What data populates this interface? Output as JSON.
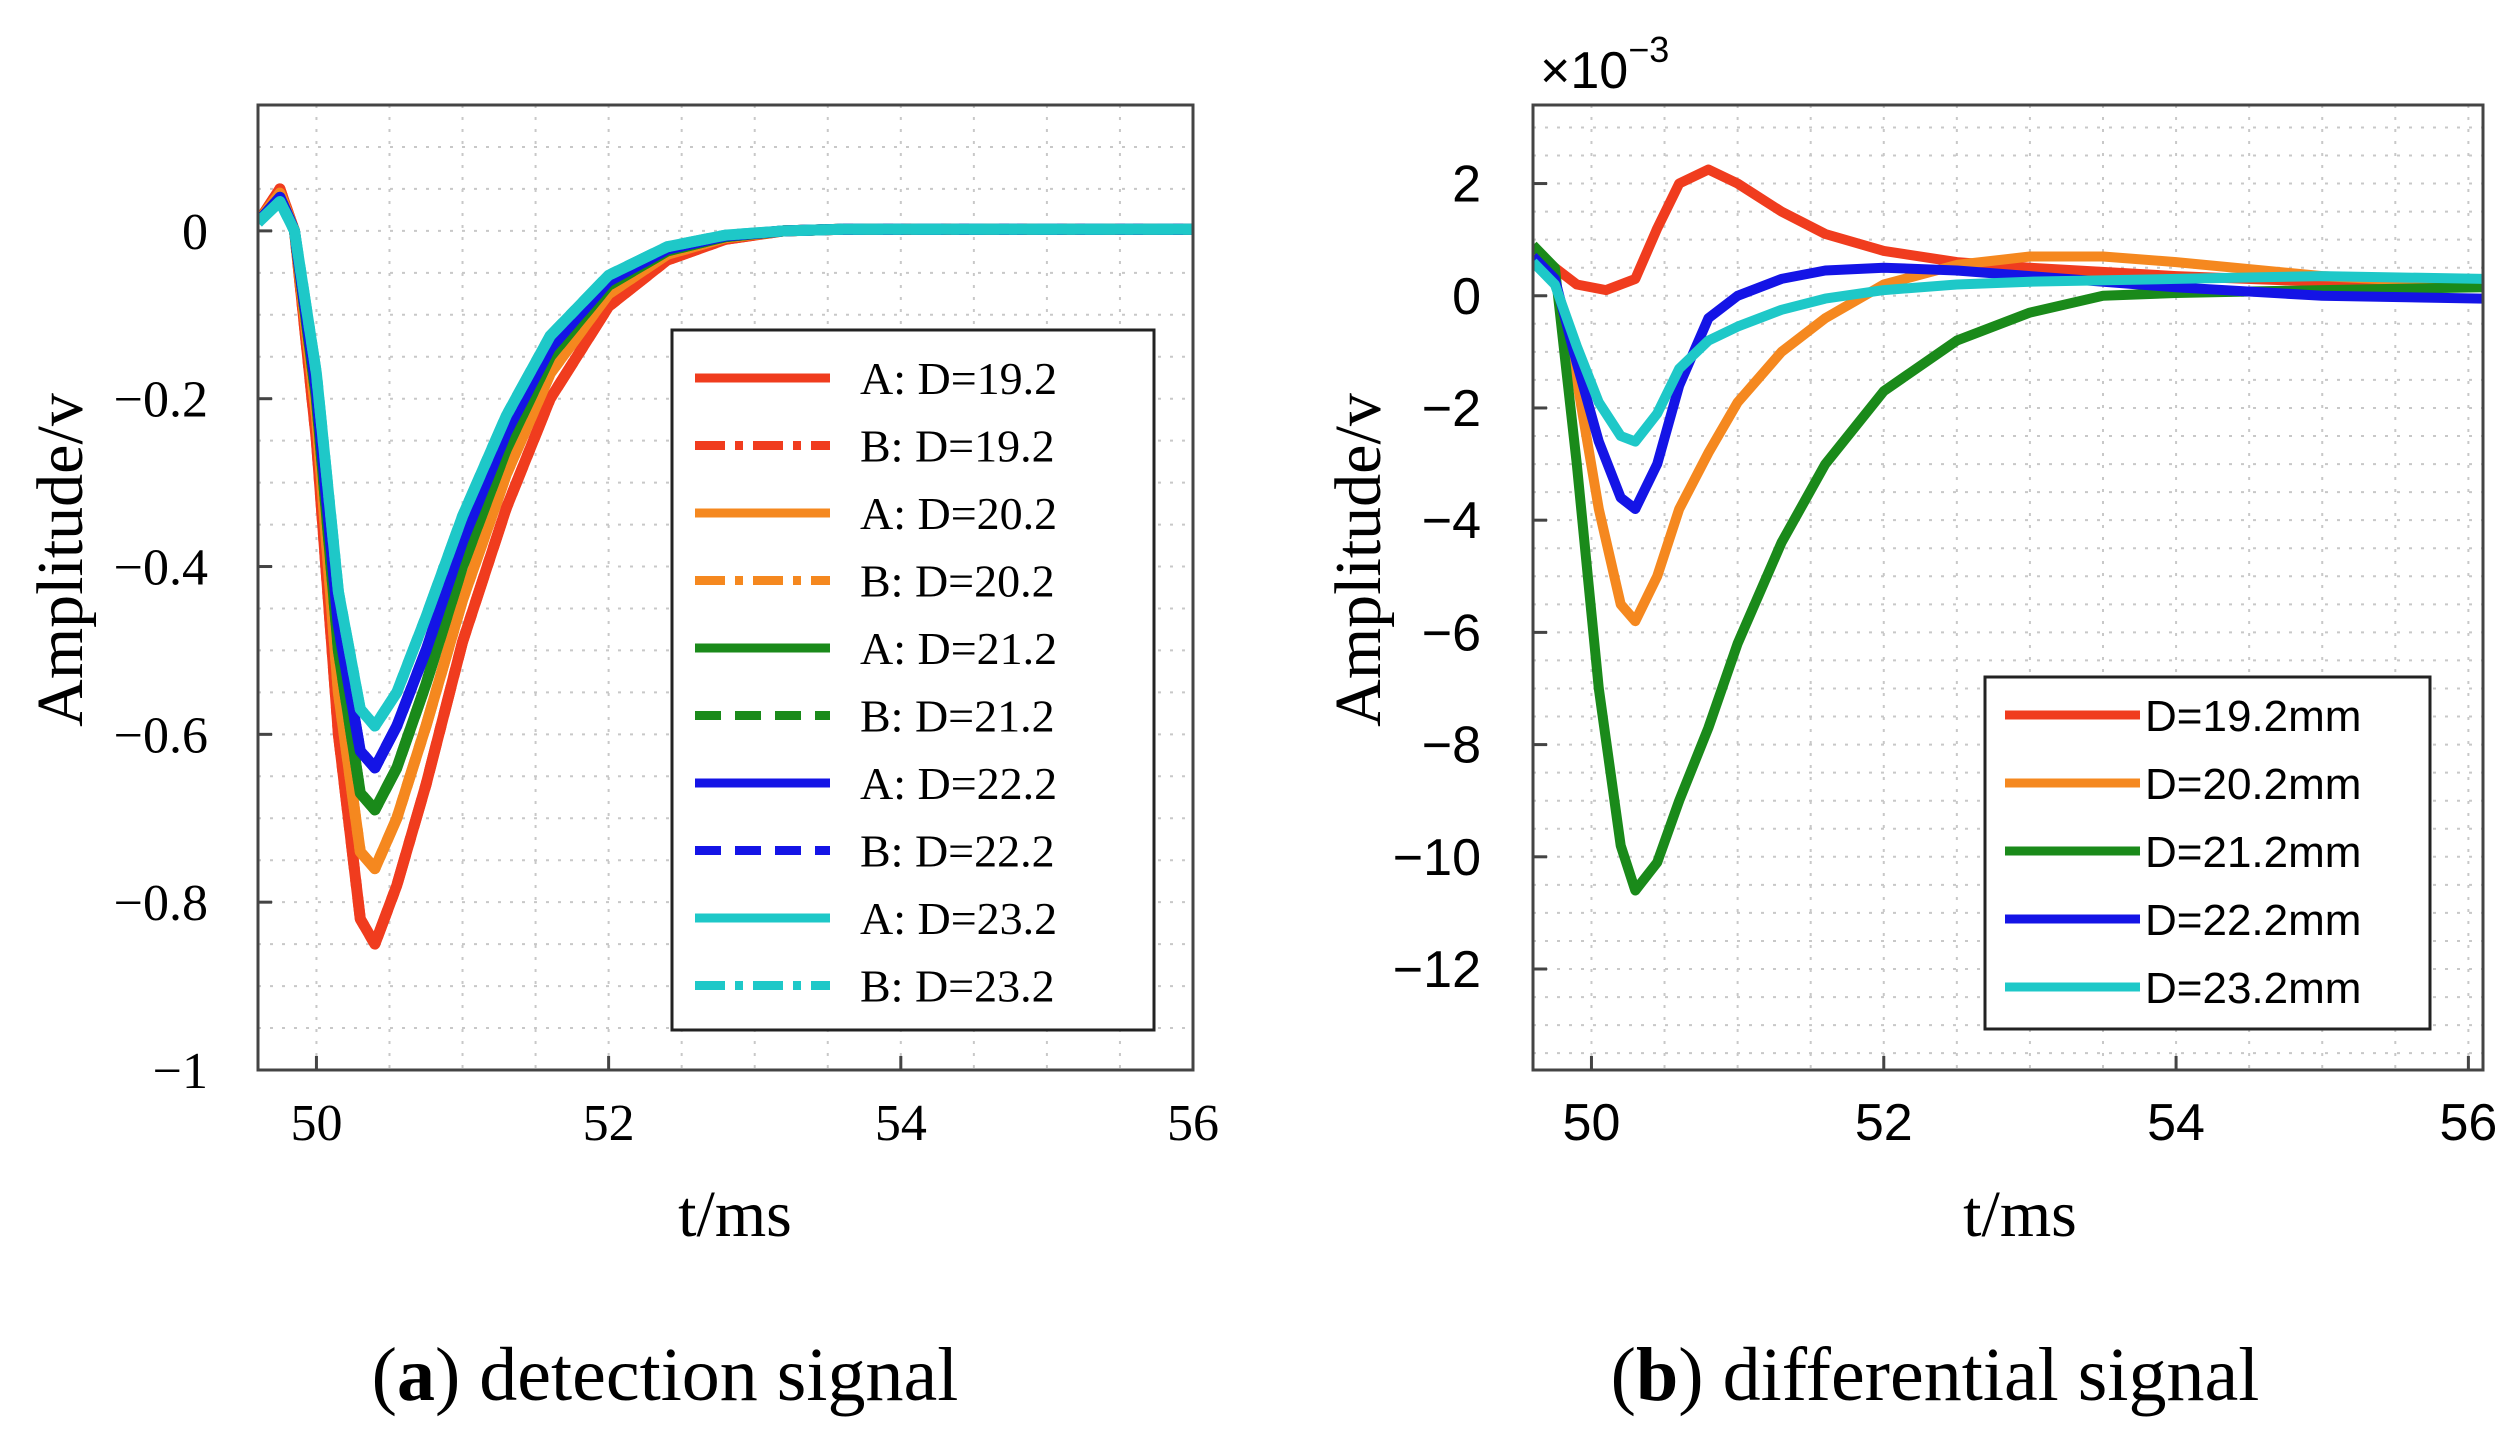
{
  "chart_data": [
    {
      "type": "line",
      "panel": "a",
      "xlabel": "t/ms",
      "ylabel": "Amplitude/v",
      "xlim": [
        49.6,
        56
      ],
      "ylim": [
        -1,
        0.15
      ],
      "xticks": [
        50,
        52,
        54,
        56
      ],
      "yticks": [
        0,
        -0.2,
        -0.4,
        -0.6,
        -0.8,
        -1
      ],
      "ytick_labels": [
        "0",
        "−0.2",
        "−0.4",
        "−0.6",
        "−0.8",
        "−1"
      ],
      "grid": "dotted",
      "legend_position": "right",
      "series": [
        {
          "name": "A: D=19.2",
          "color": "#f03c1e",
          "style": "solid",
          "x": [
            49.6,
            49.75,
            49.85,
            50.0,
            50.15,
            50.3,
            50.4,
            50.55,
            50.75,
            51.0,
            51.3,
            51.6,
            52.0,
            52.4,
            52.8,
            53.2,
            53.6,
            54.0,
            55.0,
            56.0
          ],
          "y": [
            0.01,
            0.05,
            0.0,
            -0.25,
            -0.6,
            -0.82,
            -0.85,
            -0.78,
            -0.66,
            -0.49,
            -0.33,
            -0.2,
            -0.09,
            -0.035,
            -0.01,
            0.0,
            0.002,
            0.002,
            0.002,
            0.002
          ]
        },
        {
          "name": "B: D=19.2",
          "color": "#f03c1e",
          "style": "dashdot",
          "x": [
            49.6,
            49.75,
            49.85,
            50.0,
            50.15,
            50.3,
            50.4,
            50.55,
            50.75,
            51.0,
            51.3,
            51.6,
            52.0,
            52.4,
            52.8,
            53.2,
            53.6,
            54.0,
            55.0,
            56.0
          ],
          "y": [
            0.01,
            0.05,
            0.0,
            -0.25,
            -0.6,
            -0.82,
            -0.85,
            -0.78,
            -0.66,
            -0.49,
            -0.33,
            -0.2,
            -0.09,
            -0.035,
            -0.01,
            0.0,
            0.002,
            0.002,
            0.002,
            0.002
          ]
        },
        {
          "name": "A: D=20.2",
          "color": "#f5881f",
          "style": "solid",
          "x": [
            49.6,
            49.75,
            49.85,
            50.0,
            50.15,
            50.3,
            50.4,
            50.55,
            50.75,
            51.0,
            51.3,
            51.6,
            52.0,
            52.4,
            52.8,
            53.2,
            53.6,
            54.0,
            55.0,
            56.0
          ],
          "y": [
            0.01,
            0.045,
            0.0,
            -0.22,
            -0.55,
            -0.74,
            -0.76,
            -0.7,
            -0.59,
            -0.44,
            -0.29,
            -0.17,
            -0.075,
            -0.028,
            -0.008,
            0.0,
            0.002,
            0.002,
            0.002,
            0.002
          ]
        },
        {
          "name": "B: D=20.2",
          "color": "#f5881f",
          "style": "dashdot",
          "x": [
            49.6,
            49.75,
            49.85,
            50.0,
            50.15,
            50.3,
            50.4,
            50.55,
            50.75,
            51.0,
            51.3,
            51.6,
            52.0,
            52.4,
            52.8,
            53.2,
            53.6,
            54.0,
            55.0,
            56.0
          ],
          "y": [
            0.01,
            0.045,
            0.0,
            -0.22,
            -0.55,
            -0.74,
            -0.76,
            -0.7,
            -0.59,
            -0.44,
            -0.29,
            -0.17,
            -0.075,
            -0.028,
            -0.008,
            0.0,
            0.002,
            0.002,
            0.002,
            0.002
          ]
        },
        {
          "name": "A: D=21.2",
          "color": "#1a8a1a",
          "style": "solid",
          "x": [
            49.6,
            49.75,
            49.85,
            50.0,
            50.15,
            50.3,
            50.4,
            50.55,
            50.75,
            51.0,
            51.3,
            51.6,
            52.0,
            52.4,
            52.8,
            53.2,
            53.6,
            54.0,
            55.0,
            56.0
          ],
          "y": [
            0.01,
            0.04,
            0.0,
            -0.2,
            -0.5,
            -0.67,
            -0.69,
            -0.64,
            -0.54,
            -0.4,
            -0.26,
            -0.15,
            -0.065,
            -0.024,
            -0.007,
            0.0,
            0.002,
            0.002,
            0.002,
            0.002
          ]
        },
        {
          "name": "B: D=21.2",
          "color": "#1a8a1a",
          "style": "dashed",
          "x": [
            49.6,
            49.75,
            49.85,
            50.0,
            50.15,
            50.3,
            50.4,
            50.55,
            50.75,
            51.0,
            51.3,
            51.6,
            52.0,
            52.4,
            52.8,
            53.2,
            53.6,
            54.0,
            55.0,
            56.0
          ],
          "y": [
            0.01,
            0.04,
            0.0,
            -0.2,
            -0.5,
            -0.67,
            -0.69,
            -0.64,
            -0.54,
            -0.4,
            -0.26,
            -0.15,
            -0.065,
            -0.024,
            -0.007,
            0.0,
            0.002,
            0.002,
            0.002,
            0.002
          ]
        },
        {
          "name": "A: D=22.2",
          "color": "#1414e6",
          "style": "solid",
          "x": [
            49.6,
            49.75,
            49.85,
            50.0,
            50.15,
            50.3,
            50.4,
            50.55,
            50.75,
            51.0,
            51.3,
            51.6,
            52.0,
            52.4,
            52.8,
            53.2,
            53.6,
            54.0,
            55.0,
            56.0
          ],
          "y": [
            0.01,
            0.04,
            0.0,
            -0.19,
            -0.47,
            -0.62,
            -0.64,
            -0.59,
            -0.5,
            -0.37,
            -0.24,
            -0.14,
            -0.06,
            -0.022,
            -0.006,
            0.0,
            0.002,
            0.002,
            0.002,
            0.002
          ]
        },
        {
          "name": "B: D=22.2",
          "color": "#1414e6",
          "style": "dashed",
          "x": [
            49.6,
            49.75,
            49.85,
            50.0,
            50.15,
            50.3,
            50.4,
            50.55,
            50.75,
            51.0,
            51.3,
            51.6,
            52.0,
            52.4,
            52.8,
            53.2,
            53.6,
            54.0,
            55.0,
            56.0
          ],
          "y": [
            0.01,
            0.04,
            0.0,
            -0.19,
            -0.47,
            -0.62,
            -0.64,
            -0.59,
            -0.5,
            -0.37,
            -0.24,
            -0.14,
            -0.06,
            -0.022,
            -0.006,
            0.0,
            0.002,
            0.002,
            0.002,
            0.002
          ]
        },
        {
          "name": "A: D=23.2",
          "color": "#1ec8c8",
          "style": "solid",
          "x": [
            49.6,
            49.75,
            49.85,
            50.0,
            50.15,
            50.3,
            50.4,
            50.55,
            50.75,
            51.0,
            51.3,
            51.6,
            52.0,
            52.4,
            52.8,
            53.2,
            53.6,
            54.0,
            55.0,
            56.0
          ],
          "y": [
            0.01,
            0.035,
            0.0,
            -0.17,
            -0.43,
            -0.57,
            -0.59,
            -0.55,
            -0.46,
            -0.34,
            -0.22,
            -0.125,
            -0.053,
            -0.019,
            -0.005,
            0.0,
            0.002,
            0.002,
            0.002,
            0.002
          ]
        },
        {
          "name": "B: D=23.2",
          "color": "#1ec8c8",
          "style": "dashdot",
          "x": [
            49.6,
            49.75,
            49.85,
            50.0,
            50.15,
            50.3,
            50.4,
            50.55,
            50.75,
            51.0,
            51.3,
            51.6,
            52.0,
            52.4,
            52.8,
            53.2,
            53.6,
            54.0,
            55.0,
            56.0
          ],
          "y": [
            0.01,
            0.035,
            0.0,
            -0.17,
            -0.43,
            -0.57,
            -0.59,
            -0.55,
            -0.46,
            -0.34,
            -0.22,
            -0.125,
            -0.053,
            -0.019,
            -0.005,
            0.0,
            0.002,
            0.002,
            0.002,
            0.002
          ]
        }
      ],
      "caption_bold": "a",
      "caption_text": "detection signal"
    },
    {
      "type": "line",
      "panel": "b",
      "xlabel": "t/ms",
      "ylabel": "Amplitude/v",
      "axis_multiplier": "×10",
      "axis_multiplier_exponent": "−3",
      "xlim": [
        49.6,
        56.1
      ],
      "ylim": [
        -13.8,
        3.4
      ],
      "xticks": [
        50,
        52,
        54,
        56
      ],
      "yticks": [
        2,
        0,
        -2,
        -4,
        -6,
        -8,
        -10,
        -12
      ],
      "ytick_labels": [
        "2",
        "0",
        "−2",
        "−4",
        "−6",
        "−8",
        "−10",
        "−12"
      ],
      "grid": "dotted",
      "legend_position": "bottom-right",
      "series": [
        {
          "name": "D=19.2mm",
          "color": "#f03c1e",
          "x": [
            49.6,
            49.75,
            49.9,
            50.1,
            50.3,
            50.45,
            50.6,
            50.8,
            51.0,
            51.3,
            51.6,
            52.0,
            52.5,
            53.0,
            54.0,
            55.0,
            56.1
          ],
          "y": [
            0.8,
            0.5,
            0.2,
            0.1,
            0.3,
            1.2,
            2.0,
            2.25,
            2.0,
            1.5,
            1.1,
            0.8,
            0.6,
            0.5,
            0.35,
            0.25,
            0.2
          ]
        },
        {
          "name": "D=20.2mm",
          "color": "#f5881f",
          "x": [
            49.6,
            49.75,
            49.9,
            50.05,
            50.2,
            50.3,
            50.45,
            50.6,
            50.8,
            51.0,
            51.3,
            51.6,
            52.0,
            52.5,
            53.0,
            53.5,
            54.0,
            55.0,
            56.1
          ],
          "y": [
            0.7,
            0.3,
            -1.5,
            -3.8,
            -5.5,
            -5.8,
            -5.0,
            -3.8,
            -2.8,
            -1.9,
            -1.0,
            -0.4,
            0.2,
            0.55,
            0.7,
            0.7,
            0.6,
            0.35,
            0.2
          ]
        },
        {
          "name": "D=21.2mm",
          "color": "#1a8a1a",
          "x": [
            49.6,
            49.75,
            49.9,
            50.05,
            50.2,
            50.3,
            50.45,
            50.6,
            50.8,
            51.0,
            51.3,
            51.6,
            52.0,
            52.5,
            53.0,
            53.5,
            54.0,
            55.0,
            56.1
          ],
          "y": [
            0.9,
            0.5,
            -3.0,
            -7.0,
            -9.8,
            -10.6,
            -10.1,
            -9.0,
            -7.7,
            -6.2,
            -4.4,
            -3.0,
            -1.7,
            -0.8,
            -0.3,
            0.0,
            0.05,
            0.1,
            0.15
          ]
        },
        {
          "name": "D=22.2mm",
          "color": "#1414e6",
          "x": [
            49.6,
            49.75,
            49.9,
            50.05,
            50.2,
            50.3,
            50.45,
            50.6,
            50.8,
            51.0,
            51.3,
            51.6,
            52.0,
            52.5,
            53.0,
            54.0,
            55.0,
            56.1
          ],
          "y": [
            0.7,
            0.3,
            -1.2,
            -2.6,
            -3.6,
            -3.8,
            -3.0,
            -1.6,
            -0.4,
            0.0,
            0.3,
            0.45,
            0.5,
            0.45,
            0.35,
            0.15,
            0.0,
            -0.05
          ]
        },
        {
          "name": "D=23.2mm",
          "color": "#1ec8c8",
          "x": [
            49.6,
            49.75,
            49.9,
            50.05,
            50.2,
            50.3,
            50.45,
            50.6,
            50.8,
            51.0,
            51.3,
            51.6,
            52.0,
            52.5,
            53.0,
            54.0,
            55.0,
            56.1
          ],
          "y": [
            0.6,
            0.2,
            -0.9,
            -1.9,
            -2.5,
            -2.6,
            -2.1,
            -1.3,
            -0.8,
            -0.55,
            -0.25,
            -0.05,
            0.1,
            0.2,
            0.25,
            0.3,
            0.35,
            0.3
          ]
        }
      ],
      "caption_bold": "b",
      "caption_text": "differential signal"
    }
  ]
}
